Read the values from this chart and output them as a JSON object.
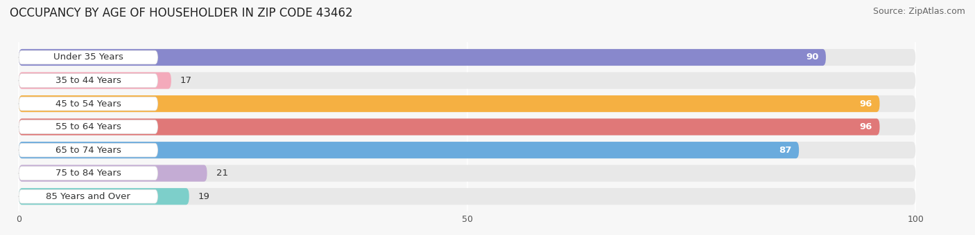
{
  "title": "OCCUPANCY BY AGE OF HOUSEHOLDER IN ZIP CODE 43462",
  "source": "Source: ZipAtlas.com",
  "categories": [
    "Under 35 Years",
    "35 to 44 Years",
    "45 to 54 Years",
    "55 to 64 Years",
    "65 to 74 Years",
    "75 to 84 Years",
    "85 Years and Over"
  ],
  "values": [
    90,
    17,
    96,
    96,
    87,
    21,
    19
  ],
  "bar_colors": [
    "#8888cc",
    "#f4aabb",
    "#f5b042",
    "#e07878",
    "#6aabdd",
    "#c4acd4",
    "#7dcfca"
  ],
  "track_color": "#e8e8e8",
  "label_bg_color": "#ffffff",
  "xlim_max": 100,
  "xticks": [
    0,
    50,
    100
  ],
  "title_fontsize": 12,
  "source_fontsize": 9,
  "label_fontsize": 9.5,
  "value_fontsize": 9.5,
  "bar_height": 0.72,
  "background_color": "#f7f7f7"
}
